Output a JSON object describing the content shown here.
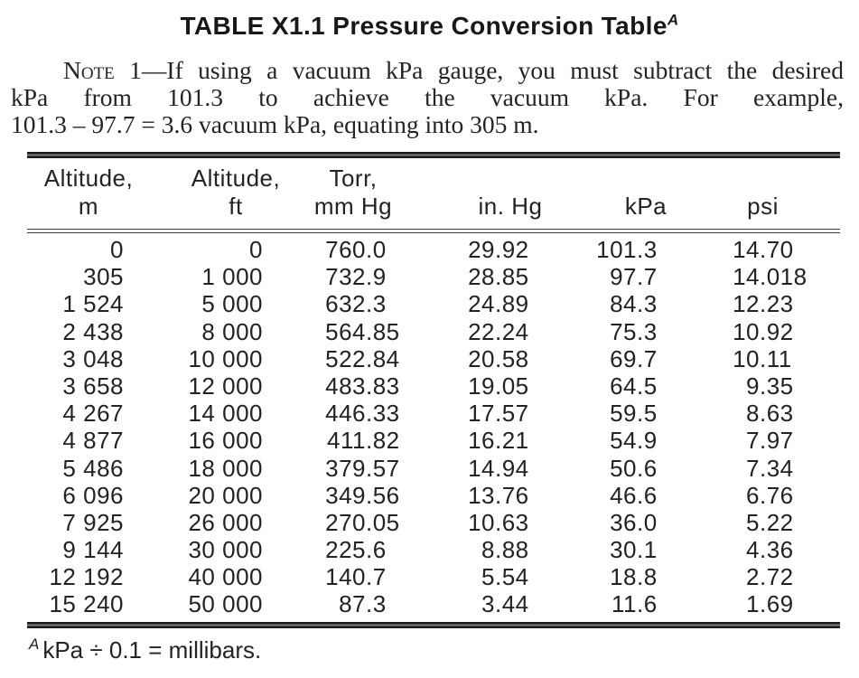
{
  "title": {
    "text": "TABLE X1.1 Pressure Conversion Table",
    "footnote_ref": "A"
  },
  "note": {
    "label": "Note",
    "line1": " 1—If using a vacuum kPa gauge, you must subtract the desired",
    "line2": "kPa from 101.3 to achieve the vacuum kPa. For example,",
    "line3": "101.3 – 97.7 = 3.6 vacuum kPa, equating into 305 m."
  },
  "table": {
    "columns": [
      {
        "key": "altitude-m",
        "line1": "Altitude,",
        "line2": "m"
      },
      {
        "key": "altitude-ft",
        "line1": "Altitude,",
        "line2": "ft"
      },
      {
        "key": "torr-mm-hg",
        "line1": "Torr,",
        "line2": "mm Hg"
      },
      {
        "key": "in-hg",
        "line1": "",
        "line2": "in. Hg"
      },
      {
        "key": "kpa",
        "line1": "",
        "line2": "kPa"
      },
      {
        "key": "psi",
        "line1": "",
        "line2": "psi"
      }
    ],
    "rows": [
      [
        "0",
        "0",
        "760.0",
        "29.92",
        "101.3",
        "14.70"
      ],
      [
        "305",
        "1 000",
        "732.9",
        "28.85",
        "97.7",
        "14.018"
      ],
      [
        "1 524",
        "5 000",
        "632.3",
        "24.89",
        "84.3",
        "12.23"
      ],
      [
        "2 438",
        "8 000",
        "564.85",
        "22.24",
        "75.3",
        "10.92"
      ],
      [
        "3 048",
        "10 000",
        "522.84",
        "20.58",
        "69.7",
        "10.11"
      ],
      [
        "3 658",
        "12 000",
        "483.83",
        "19.05",
        "64.5",
        "9.35"
      ],
      [
        "4 267",
        "14 000",
        "446.33",
        "17.57",
        "59.5",
        "8.63"
      ],
      [
        "4 877",
        "16 000",
        "411.82",
        "16.21",
        "54.9",
        "7.97"
      ],
      [
        "5 486",
        "18 000",
        "379.57",
        "14.94",
        "50.6",
        "7.34"
      ],
      [
        "6 096",
        "20 000",
        "349.56",
        "13.76",
        "46.6",
        "6.76"
      ],
      [
        "7 925",
        "26 000",
        "270.05",
        "10.63",
        "36.0",
        "5.22"
      ],
      [
        "9 144",
        "30 000",
        "225.6",
        "8.88",
        "30.1",
        "4.36"
      ],
      [
        "12 192",
        "40 000",
        "140.7",
        "5.54",
        "18.8",
        "2.72"
      ],
      [
        "15 240",
        "50 000",
        "87.3",
        "3.44",
        "11.6",
        "1.69"
      ]
    ]
  },
  "footnote": {
    "ref": "A",
    "text": "kPa ÷ 0.1 = millibars."
  }
}
